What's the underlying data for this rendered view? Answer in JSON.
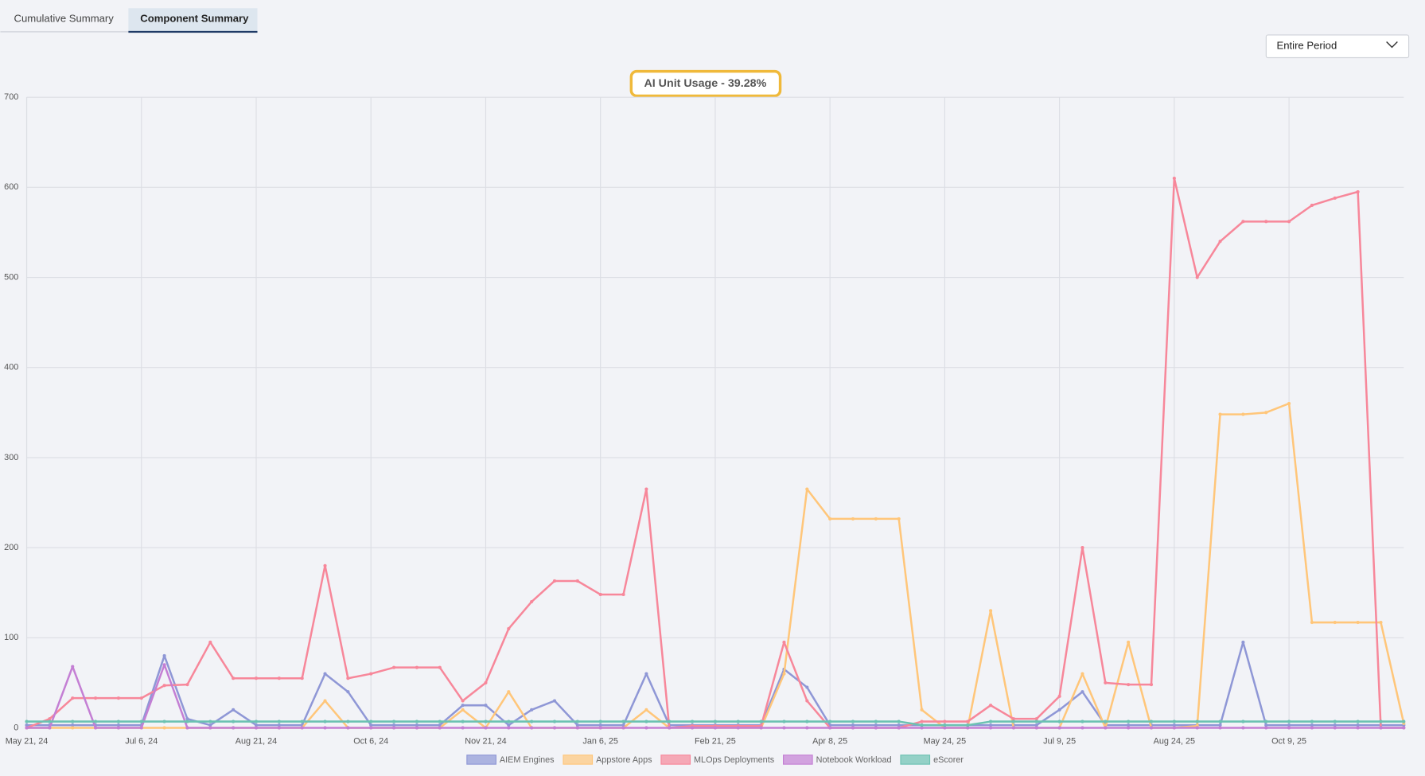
{
  "tabs": [
    "Cumulative Summary",
    "Component Summary"
  ],
  "period_select": "Entire Period",
  "chart_data": {
    "type": "line",
    "title": "AI Unit Usage - 39.28%",
    "categories": [
      "May 21, 24",
      null,
      null,
      null,
      null,
      "Jul 6, 24",
      null,
      null,
      null,
      null,
      "Aug 21, 24",
      null,
      null,
      null,
      null,
      "Oct 6, 24",
      null,
      null,
      null,
      null,
      "Nov 21, 24",
      null,
      null,
      null,
      null,
      "Jan 6, 25",
      null,
      null,
      null,
      null,
      "Feb 21, 25",
      null,
      null,
      null,
      null,
      "Apr 8, 25",
      null,
      null,
      null,
      null,
      "May 24, 25",
      null,
      null,
      null,
      null,
      "Jul 9, 25",
      null,
      null,
      null,
      null,
      "Aug 24, 25",
      null,
      null,
      null,
      null,
      "Oct 9, 25",
      null,
      null,
      null,
      null,
      null
    ],
    "ylim": [
      0,
      700
    ],
    "yticks": [
      0,
      100,
      200,
      300,
      400,
      500,
      600,
      700
    ],
    "grid": true,
    "legend": "bottom",
    "series": [
      {
        "name": "AIEM Engines",
        "color": "#8f97d6",
        "values": [
          3,
          3,
          3,
          3,
          3,
          3,
          80,
          10,
          3,
          20,
          3,
          3,
          3,
          60,
          40,
          3,
          3,
          3,
          3,
          25,
          25,
          3,
          20,
          30,
          3,
          3,
          3,
          60,
          3,
          3,
          3,
          3,
          3,
          65,
          45,
          3,
          3,
          3,
          3,
          3,
          3,
          3,
          3,
          3,
          3,
          20,
          40,
          3,
          3,
          3,
          3,
          3,
          3,
          95,
          3,
          3,
          3,
          3,
          3,
          3,
          3
        ]
      },
      {
        "name": "Appstore Apps",
        "color": "#ffc67a",
        "values": [
          0,
          0,
          0,
          0,
          0,
          0,
          0,
          0,
          0,
          0,
          0,
          0,
          0,
          30,
          0,
          0,
          0,
          0,
          0,
          20,
          0,
          40,
          0,
          0,
          0,
          0,
          0,
          20,
          0,
          0,
          0,
          0,
          0,
          60,
          265,
          232,
          232,
          232,
          232,
          20,
          0,
          0,
          130,
          0,
          0,
          0,
          60,
          0,
          95,
          0,
          0,
          2,
          348,
          348,
          350,
          360,
          117,
          117,
          117,
          117,
          5
        ]
      },
      {
        "name": "MLOps Deployments",
        "color": "#f7879a",
        "values": [
          0,
          10,
          33,
          33,
          33,
          33,
          47,
          48,
          95,
          55,
          55,
          55,
          55,
          180,
          55,
          60,
          67,
          67,
          67,
          30,
          50,
          110,
          140,
          163,
          163,
          148,
          148,
          265,
          0,
          2,
          2,
          2,
          2,
          95,
          30,
          0,
          0,
          0,
          0,
          7,
          7,
          7,
          25,
          10,
          10,
          35,
          200,
          50,
          48,
          48,
          610,
          500,
          540,
          562,
          562,
          562,
          580,
          588,
          595,
          0,
          0
        ]
      },
      {
        "name": "Notebook Workload",
        "color": "#c47fd4",
        "values": [
          0,
          0,
          68,
          0,
          0,
          0,
          70,
          0,
          0,
          0,
          0,
          0,
          0,
          0,
          0,
          0,
          0,
          0,
          0,
          0,
          0,
          0,
          0,
          0,
          0,
          0,
          0,
          0,
          0,
          0,
          0,
          0,
          0,
          0,
          0,
          0,
          0,
          0,
          0,
          0,
          0,
          0,
          0,
          0,
          0,
          0,
          0,
          0,
          0,
          0,
          0,
          0,
          0,
          0,
          0,
          0,
          0,
          0,
          0,
          0,
          0
        ]
      },
      {
        "name": "eScorer",
        "color": "#6cc2b2",
        "values": [
          7,
          7,
          7,
          7,
          7,
          7,
          7,
          7,
          7,
          7,
          7,
          7,
          7,
          7,
          7,
          7,
          7,
          7,
          7,
          7,
          7,
          7,
          7,
          7,
          7,
          7,
          7,
          7,
          7,
          7,
          7,
          7,
          7,
          7,
          7,
          7,
          7,
          7,
          7,
          3,
          3,
          3,
          7,
          7,
          7,
          7,
          7,
          7,
          7,
          7,
          7,
          7,
          7,
          7,
          7,
          7,
          7,
          7,
          7,
          7,
          7
        ]
      }
    ]
  }
}
